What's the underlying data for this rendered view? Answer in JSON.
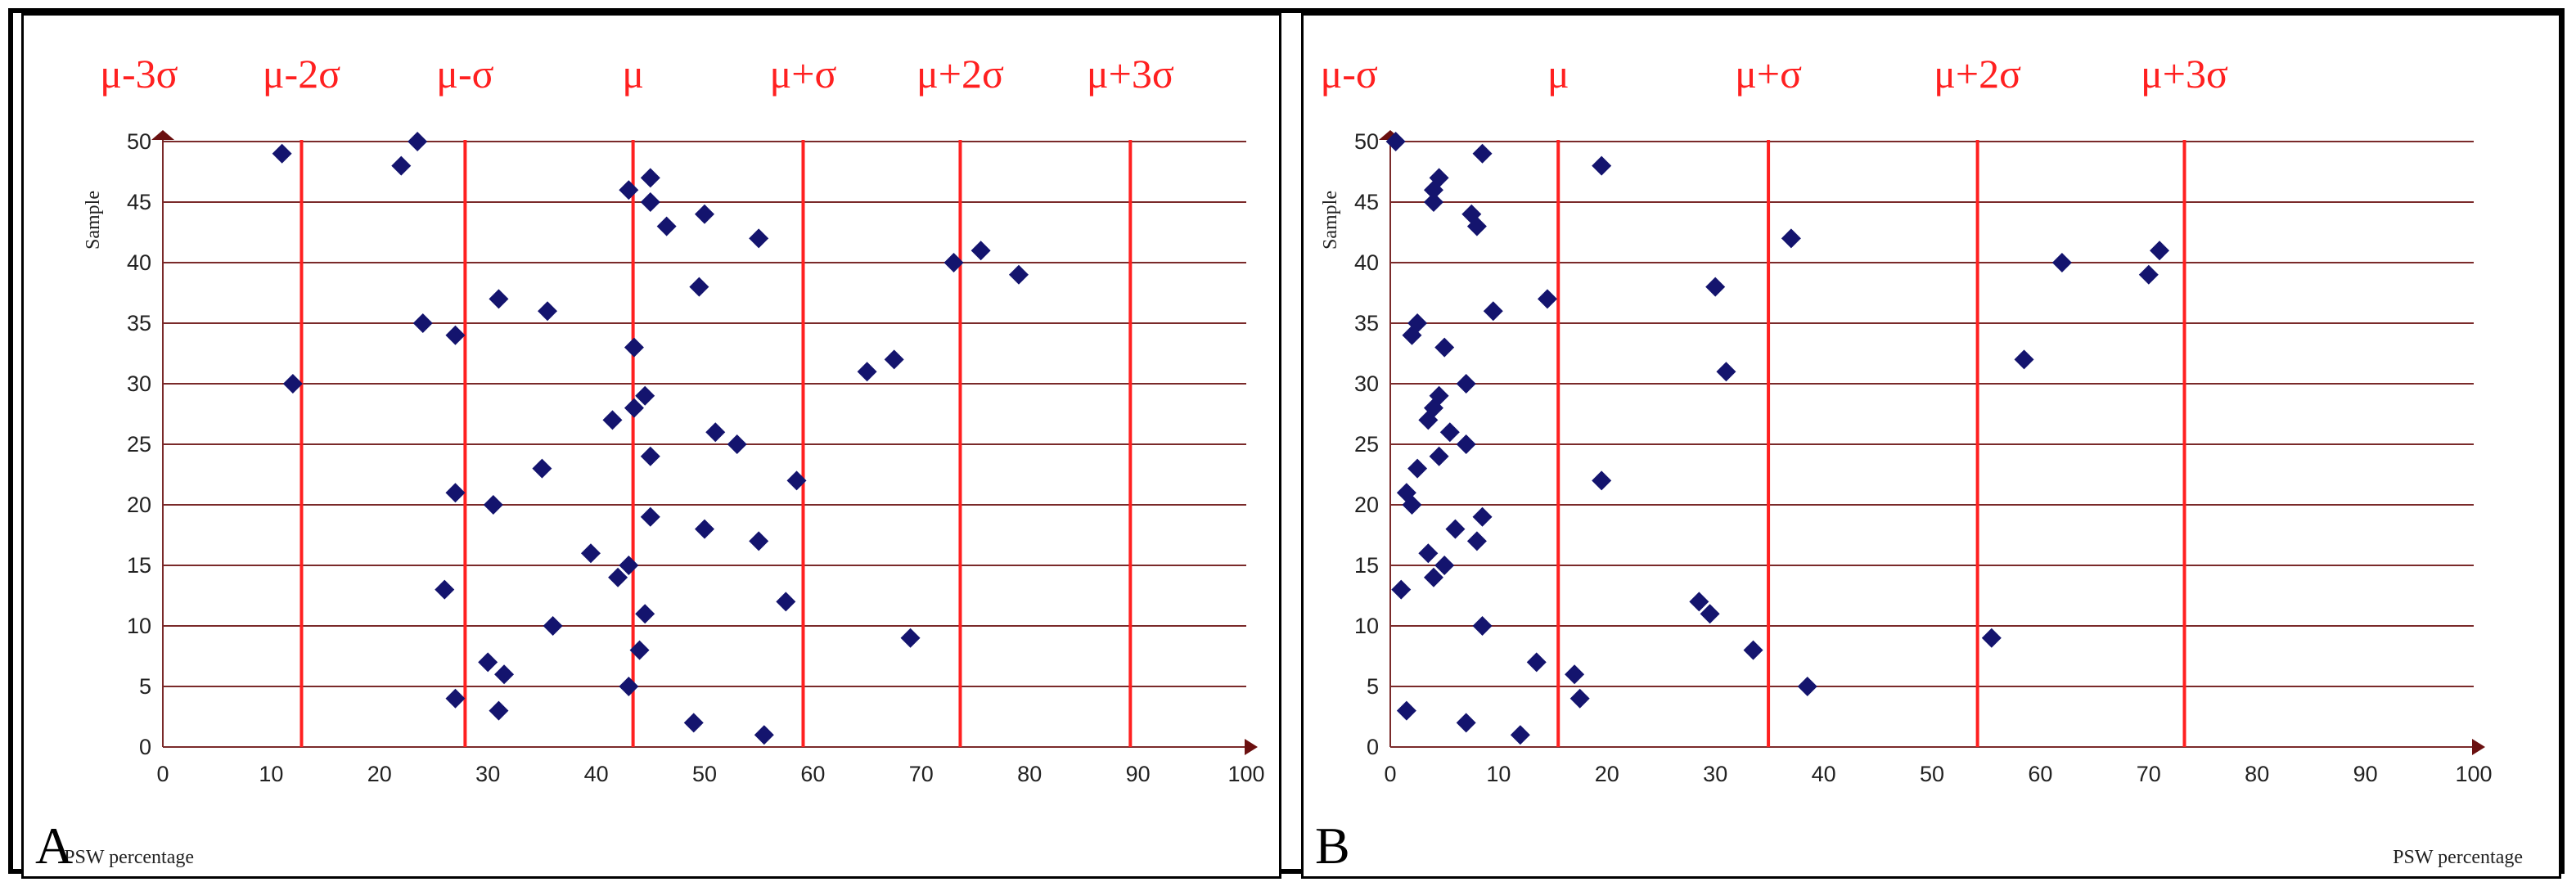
{
  "chart_data": [
    {
      "type": "scatter",
      "panel_label": "A",
      "xlabel": "PSW percentage",
      "ylabel": "Sample",
      "xlim": [
        0,
        100
      ],
      "ylim": [
        0,
        50
      ],
      "x_ticks": [
        0,
        10,
        20,
        30,
        40,
        50,
        60,
        70,
        80,
        90,
        100
      ],
      "y_ticks": [
        0,
        5,
        10,
        15,
        20,
        25,
        30,
        35,
        40,
        45,
        50
      ],
      "grid": "horizontal",
      "marker": "diamond",
      "colors": {
        "points": "#14146e",
        "sigma_lines": "#ff2020",
        "grid": "#7a2a2a",
        "axis_arrow": "#6b1010"
      },
      "sigma_lines": [
        {
          "label": "μ-3σ",
          "x": -2.2
        },
        {
          "label": "μ-2σ",
          "x": 12.8
        },
        {
          "label": "μ-σ",
          "x": 27.9
        },
        {
          "label": "μ",
          "x": 43.4
        },
        {
          "label": "μ+σ",
          "x": 59.1
        },
        {
          "label": "μ+2σ",
          "x": 73.6
        },
        {
          "label": "μ+3σ",
          "x": 89.3
        }
      ],
      "points": [
        {
          "x": 55.5,
          "y": 1
        },
        {
          "x": 49,
          "y": 2
        },
        {
          "x": 31,
          "y": 3
        },
        {
          "x": 27,
          "y": 4
        },
        {
          "x": 43,
          "y": 5
        },
        {
          "x": 31.5,
          "y": 6
        },
        {
          "x": 30,
          "y": 7
        },
        {
          "x": 44,
          "y": 8
        },
        {
          "x": 69,
          "y": 9
        },
        {
          "x": 36,
          "y": 10
        },
        {
          "x": 44.5,
          "y": 11
        },
        {
          "x": 57.5,
          "y": 12
        },
        {
          "x": 26,
          "y": 13
        },
        {
          "x": 42,
          "y": 14
        },
        {
          "x": 43,
          "y": 15
        },
        {
          "x": 39.5,
          "y": 16
        },
        {
          "x": 55,
          "y": 17
        },
        {
          "x": 50,
          "y": 18
        },
        {
          "x": 45,
          "y": 19
        },
        {
          "x": 30.5,
          "y": 20
        },
        {
          "x": 27,
          "y": 21
        },
        {
          "x": 58.5,
          "y": 22
        },
        {
          "x": 35,
          "y": 23
        },
        {
          "x": 45,
          "y": 24
        },
        {
          "x": 53,
          "y": 25
        },
        {
          "x": 51,
          "y": 26
        },
        {
          "x": 41.5,
          "y": 27
        },
        {
          "x": 43.5,
          "y": 28
        },
        {
          "x": 44.5,
          "y": 29
        },
        {
          "x": 12,
          "y": 30
        },
        {
          "x": 65,
          "y": 31
        },
        {
          "x": 67.5,
          "y": 32
        },
        {
          "x": 43.5,
          "y": 33
        },
        {
          "x": 27,
          "y": 34
        },
        {
          "x": 24,
          "y": 35
        },
        {
          "x": 35.5,
          "y": 36
        },
        {
          "x": 31,
          "y": 37
        },
        {
          "x": 49.5,
          "y": 38
        },
        {
          "x": 79,
          "y": 39
        },
        {
          "x": 73,
          "y": 40
        },
        {
          "x": 75.5,
          "y": 41
        },
        {
          "x": 55,
          "y": 42
        },
        {
          "x": 46.5,
          "y": 43
        },
        {
          "x": 50,
          "y": 44
        },
        {
          "x": 45,
          "y": 45
        },
        {
          "x": 43,
          "y": 46
        },
        {
          "x": 45,
          "y": 47
        },
        {
          "x": 22,
          "y": 48
        },
        {
          "x": 11,
          "y": 49
        },
        {
          "x": 23.5,
          "y": 50
        }
      ]
    },
    {
      "type": "scatter",
      "panel_label": "B",
      "xlabel": "PSW percentage",
      "ylabel": "Sample",
      "xlim": [
        0,
        100
      ],
      "ylim": [
        0,
        50
      ],
      "x_ticks": [
        0,
        10,
        20,
        30,
        40,
        50,
        60,
        70,
        80,
        90,
        100
      ],
      "y_ticks": [
        0,
        5,
        10,
        15,
        20,
        25,
        30,
        35,
        40,
        45,
        50
      ],
      "grid": "horizontal",
      "marker": "diamond",
      "colors": {
        "points": "#14146e",
        "sigma_lines": "#ff2020",
        "grid": "#7a2a2a",
        "axis_arrow": "#6b1010"
      },
      "sigma_lines": [
        {
          "label": "μ-σ",
          "x": -3.8
        },
        {
          "label": "μ",
          "x": 15.5
        },
        {
          "label": "μ+σ",
          "x": 34.9
        },
        {
          "label": "μ+2σ",
          "x": 54.2
        },
        {
          "label": "μ+3σ",
          "x": 73.3
        }
      ],
      "points": [
        {
          "x": 12,
          "y": 1
        },
        {
          "x": 7,
          "y": 2
        },
        {
          "x": 1.5,
          "y": 3
        },
        {
          "x": 17.5,
          "y": 4
        },
        {
          "x": 38.5,
          "y": 5
        },
        {
          "x": 17,
          "y": 6
        },
        {
          "x": 13.5,
          "y": 7
        },
        {
          "x": 33.5,
          "y": 8
        },
        {
          "x": 55.5,
          "y": 9
        },
        {
          "x": 8.5,
          "y": 10
        },
        {
          "x": 29.5,
          "y": 11
        },
        {
          "x": 28.5,
          "y": 12
        },
        {
          "x": 1,
          "y": 13
        },
        {
          "x": 4,
          "y": 14
        },
        {
          "x": 5,
          "y": 15
        },
        {
          "x": 3.5,
          "y": 16
        },
        {
          "x": 8,
          "y": 17
        },
        {
          "x": 6,
          "y": 18
        },
        {
          "x": 8.5,
          "y": 19
        },
        {
          "x": 2,
          "y": 20
        },
        {
          "x": 1.5,
          "y": 21
        },
        {
          "x": 19.5,
          "y": 22
        },
        {
          "x": 2.5,
          "y": 23
        },
        {
          "x": 4.5,
          "y": 24
        },
        {
          "x": 7,
          "y": 25
        },
        {
          "x": 5.5,
          "y": 26
        },
        {
          "x": 3.5,
          "y": 27
        },
        {
          "x": 4,
          "y": 28
        },
        {
          "x": 4.5,
          "y": 29
        },
        {
          "x": 7,
          "y": 30
        },
        {
          "x": 31,
          "y": 31
        },
        {
          "x": 58.5,
          "y": 32
        },
        {
          "x": 5,
          "y": 33
        },
        {
          "x": 2,
          "y": 34
        },
        {
          "x": 2.5,
          "y": 35
        },
        {
          "x": 9.5,
          "y": 36
        },
        {
          "x": 14.5,
          "y": 37
        },
        {
          "x": 30,
          "y": 38
        },
        {
          "x": 70,
          "y": 39
        },
        {
          "x": 62,
          "y": 40
        },
        {
          "x": 71,
          "y": 41
        },
        {
          "x": 37,
          "y": 42
        },
        {
          "x": 8,
          "y": 43
        },
        {
          "x": 7.5,
          "y": 44
        },
        {
          "x": 4,
          "y": 45
        },
        {
          "x": 4,
          "y": 46
        },
        {
          "x": 4.5,
          "y": 47
        },
        {
          "x": 19.5,
          "y": 48
        },
        {
          "x": 8.5,
          "y": 49
        },
        {
          "x": 0.5,
          "y": 50
        }
      ]
    }
  ]
}
